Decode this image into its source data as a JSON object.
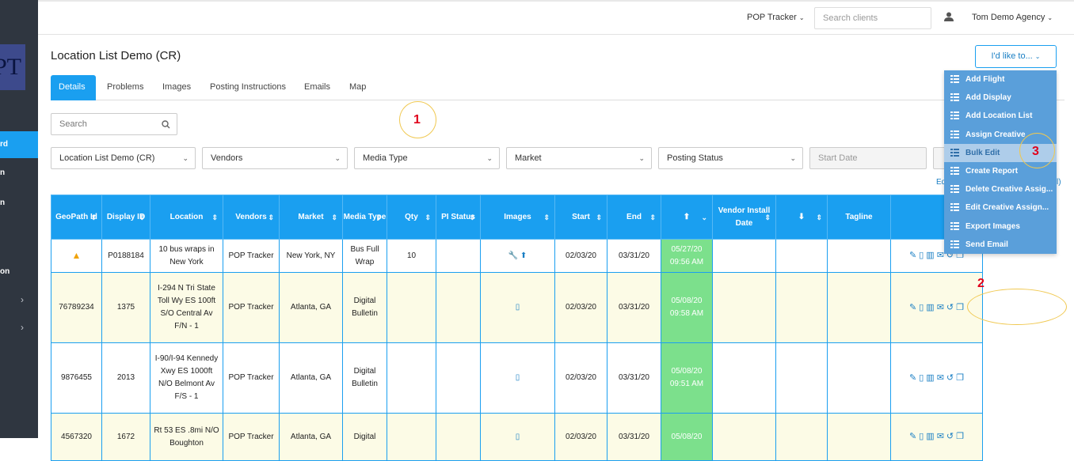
{
  "sidebar": {
    "logo_text": "PT",
    "active_label": "rd",
    "items": [
      "n",
      "n",
      "on"
    ]
  },
  "topbar": {
    "app_switcher": "POP Tracker",
    "search_placeholder": "Search clients",
    "account": "Tom Demo Agency"
  },
  "page": {
    "title": "Location List Demo (CR)"
  },
  "tabs": [
    "Details",
    "Problems",
    "Images",
    "Posting Instructions",
    "Emails",
    "Map"
  ],
  "search": {
    "placeholder": "Search"
  },
  "filters": {
    "list": "Location List Demo (CR)",
    "vendors": "Vendors",
    "media_type": "Media Type",
    "market": "Market",
    "posting_status": "Posting Status",
    "start_date": "Start Date"
  },
  "annotations": {
    "one": "1",
    "two": "2",
    "three": "3"
  },
  "edit_link": "Ed",
  "edit_link_right": "l)",
  "actions_button": "I'd like to...",
  "menu": [
    "Add Flight",
    "Add Display",
    "Add Location List",
    "Assign Creative",
    "Bulk Edit",
    "Create Report",
    "Delete Creative Assig...",
    "Edit Creative Assign...",
    "Export Images",
    "Send Email"
  ],
  "table": {
    "headers": [
      "GeoPath Id",
      "Display ID",
      "Location",
      "Vendors",
      "Market",
      "Media Type",
      "Qty",
      "PI Status",
      "Images",
      "Start",
      "End",
      "",
      "Vendor Install Date",
      "",
      "Tagline"
    ],
    "rows": [
      {
        "geopath": "",
        "display": "P0188184",
        "location": "10 bus wraps in New York",
        "vendor": "POP Tracker",
        "market": "New York, NY",
        "media": "Bus Full Wrap",
        "qty": "10",
        "start": "02/03/20",
        "end": "03/31/20",
        "posted": "05/27/20 09:56 AM"
      },
      {
        "geopath": "76789234",
        "display": "1375",
        "location": "I-294 N Tri State Toll Wy ES 100ft S/O Central Av F/N - 1",
        "vendor": "POP Tracker",
        "market": "Atlanta, GA",
        "media": "Digital Bulletin",
        "qty": "",
        "start": "02/03/20",
        "end": "03/31/20",
        "posted": "05/08/20 09:58 AM"
      },
      {
        "geopath": "9876455",
        "display": "2013",
        "location": "I-90/I-94 Kennedy Xwy ES 1000ft N/O Belmont Av F/S - 1",
        "vendor": "POP Tracker",
        "market": "Atlanta, GA",
        "media": "Digital Bulletin",
        "qty": "",
        "start": "02/03/20",
        "end": "03/31/20",
        "posted": "05/08/20 09:51 AM"
      },
      {
        "geopath": "4567320",
        "display": "1672",
        "location": "Rt 53 ES .8mi N/O Boughton",
        "vendor": "POP Tracker",
        "market": "Atlanta, GA",
        "media": "Digital",
        "qty": "",
        "start": "02/03/20",
        "end": "03/31/20",
        "posted": "05/08/20"
      }
    ]
  },
  "colors": {
    "accent": "#1a9ff0",
    "posted": "#7ce08c",
    "menu": "#5a9fda"
  }
}
